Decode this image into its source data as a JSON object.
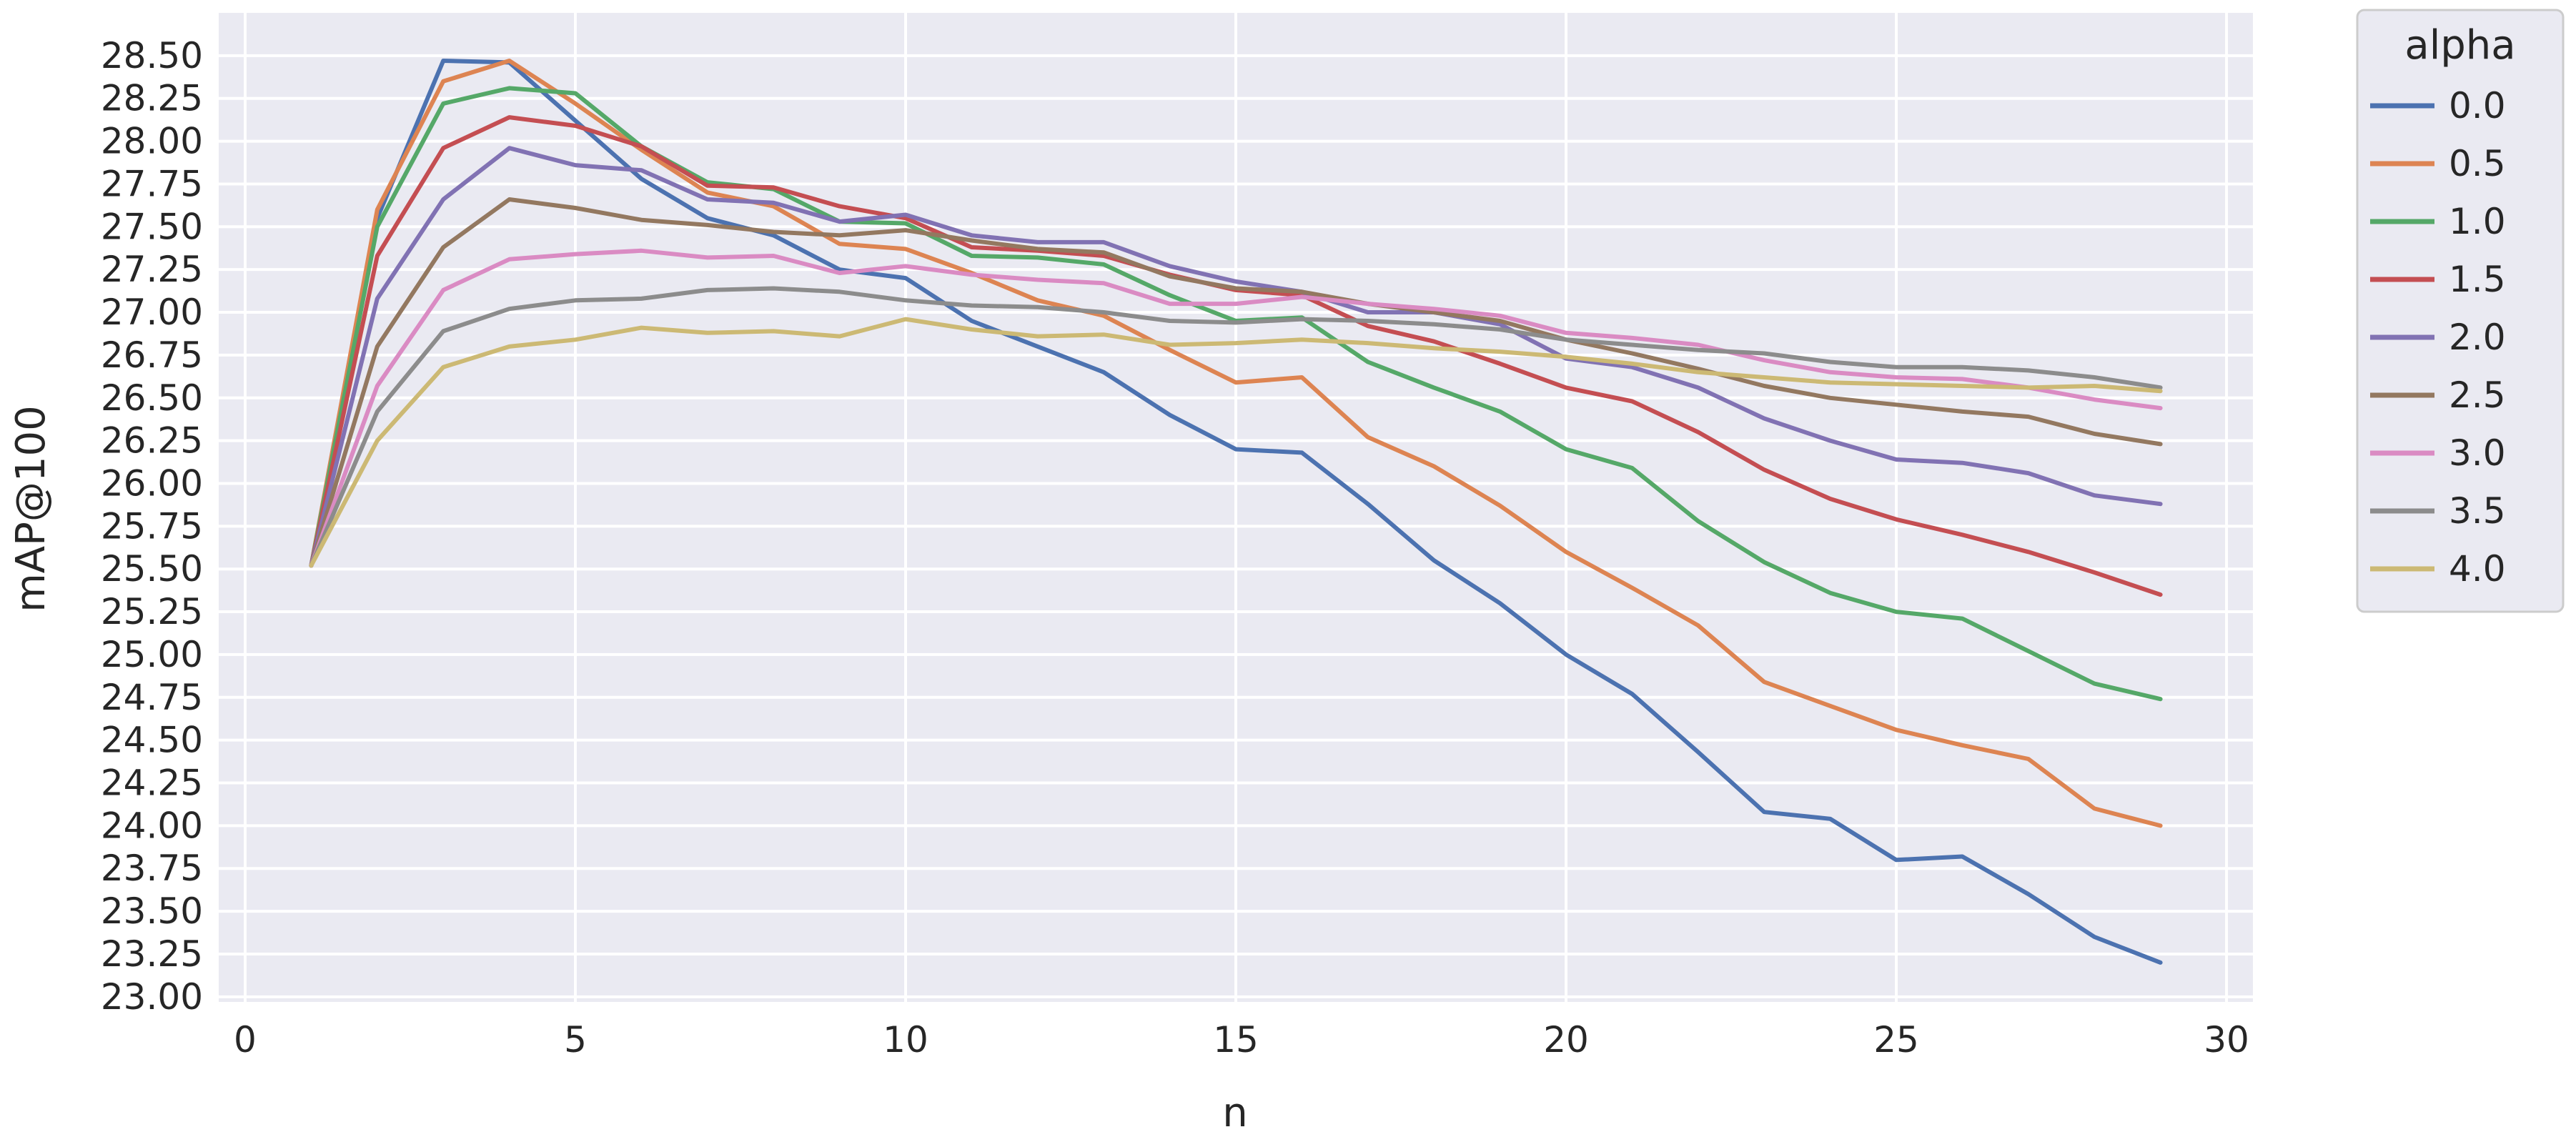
{
  "chart_data": {
    "type": "line",
    "xlabel": "n",
    "ylabel": "mAP@100",
    "xlim": [
      -0.4,
      30.4
    ],
    "ylim": [
      22.97,
      28.75
    ],
    "xticks": [
      0,
      5,
      10,
      15,
      20,
      25,
      30
    ],
    "yticks": [
      23.0,
      23.25,
      23.5,
      23.75,
      24.0,
      24.25,
      24.5,
      24.75,
      25.0,
      25.25,
      25.5,
      25.75,
      26.0,
      26.25,
      26.5,
      26.75,
      27.0,
      27.25,
      27.5,
      27.75,
      28.0,
      28.25,
      28.5
    ],
    "grid": true,
    "legend": {
      "title": "alpha",
      "placement": "outside-top-right"
    },
    "x": [
      1,
      2,
      3,
      4,
      5,
      6,
      7,
      8,
      9,
      10,
      11,
      12,
      13,
      14,
      15,
      16,
      17,
      18,
      19,
      20,
      21,
      22,
      23,
      24,
      25,
      26,
      27,
      28,
      29
    ],
    "series": [
      {
        "name": "0.0",
        "color": "#4c72b0",
        "values": [
          25.52,
          27.55,
          28.47,
          28.46,
          28.12,
          27.78,
          27.55,
          27.45,
          27.25,
          27.2,
          26.95,
          26.8,
          26.65,
          26.4,
          26.2,
          26.18,
          25.88,
          25.55,
          25.3,
          25.0,
          24.77,
          24.43,
          24.08,
          24.04,
          23.8,
          23.82,
          23.6,
          23.35,
          23.2
        ]
      },
      {
        "name": "0.5",
        "color": "#dd8452",
        "values": [
          25.52,
          27.6,
          28.35,
          28.47,
          28.22,
          27.95,
          27.7,
          27.62,
          27.4,
          27.37,
          27.23,
          27.07,
          26.98,
          26.78,
          26.59,
          26.62,
          26.27,
          26.1,
          25.87,
          25.6,
          25.39,
          25.17,
          24.84,
          24.7,
          24.56,
          24.47,
          24.39,
          24.1,
          24.0
        ]
      },
      {
        "name": "1.0",
        "color": "#55a868",
        "values": [
          25.52,
          27.5,
          28.22,
          28.31,
          28.28,
          27.97,
          27.76,
          27.72,
          27.53,
          27.52,
          27.33,
          27.32,
          27.28,
          27.1,
          26.95,
          26.97,
          26.71,
          26.56,
          26.42,
          26.2,
          26.09,
          25.78,
          25.54,
          25.36,
          25.25,
          25.21,
          25.02,
          24.83,
          24.74
        ]
      },
      {
        "name": "1.5",
        "color": "#c44e52",
        "values": [
          25.52,
          27.33,
          27.96,
          28.14,
          28.09,
          27.97,
          27.74,
          27.73,
          27.62,
          27.55,
          27.38,
          27.36,
          27.33,
          27.22,
          27.13,
          27.1,
          26.92,
          26.83,
          26.7,
          26.56,
          26.48,
          26.3,
          26.08,
          25.91,
          25.79,
          25.7,
          25.6,
          25.48,
          25.35
        ]
      },
      {
        "name": "2.0",
        "color": "#8172b3",
        "values": [
          25.52,
          27.08,
          27.66,
          27.96,
          27.86,
          27.83,
          27.66,
          27.64,
          27.53,
          27.57,
          27.45,
          27.41,
          27.41,
          27.27,
          27.18,
          27.12,
          27.0,
          27.0,
          26.93,
          26.73,
          26.68,
          26.56,
          26.38,
          26.25,
          26.14,
          26.12,
          26.06,
          25.93,
          25.88
        ]
      },
      {
        "name": "2.5",
        "color": "#937860",
        "values": [
          25.52,
          26.8,
          27.38,
          27.66,
          27.61,
          27.54,
          27.51,
          27.47,
          27.45,
          27.48,
          27.42,
          27.37,
          27.35,
          27.21,
          27.14,
          27.12,
          27.05,
          27.0,
          26.95,
          26.84,
          26.76,
          26.67,
          26.57,
          26.5,
          26.46,
          26.42,
          26.39,
          26.29,
          26.23
        ]
      },
      {
        "name": "3.0",
        "color": "#da8bc3",
        "values": [
          25.52,
          26.57,
          27.13,
          27.31,
          27.34,
          27.36,
          27.32,
          27.33,
          27.23,
          27.27,
          27.22,
          27.19,
          27.17,
          27.05,
          27.05,
          27.09,
          27.05,
          27.02,
          26.98,
          26.88,
          26.85,
          26.81,
          26.72,
          26.65,
          26.62,
          26.61,
          26.56,
          26.49,
          26.44
        ]
      },
      {
        "name": "3.5",
        "color": "#8c8c8c",
        "values": [
          25.52,
          26.42,
          26.89,
          27.02,
          27.07,
          27.08,
          27.13,
          27.14,
          27.12,
          27.07,
          27.04,
          27.03,
          27.0,
          26.95,
          26.94,
          26.96,
          26.95,
          26.93,
          26.9,
          26.84,
          26.81,
          26.78,
          26.76,
          26.71,
          26.68,
          26.68,
          26.66,
          26.62,
          26.56
        ]
      },
      {
        "name": "4.0",
        "color": "#ccb974",
        "values": [
          25.52,
          26.25,
          26.68,
          26.8,
          26.84,
          26.91,
          26.88,
          26.89,
          26.86,
          26.96,
          26.9,
          26.86,
          26.87,
          26.81,
          26.82,
          26.84,
          26.82,
          26.79,
          26.77,
          26.74,
          26.7,
          26.65,
          26.62,
          26.59,
          26.58,
          26.57,
          26.56,
          26.57,
          26.54
        ]
      }
    ]
  }
}
